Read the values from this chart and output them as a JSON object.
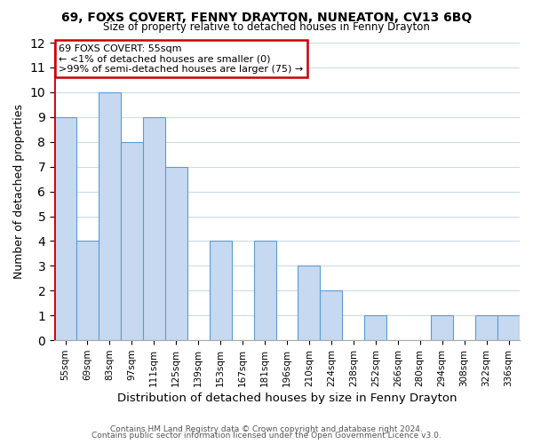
{
  "title": "69, FOXS COVERT, FENNY DRAYTON, NUNEATON, CV13 6BQ",
  "subtitle": "Size of property relative to detached houses in Fenny Drayton",
  "xlabel": "Distribution of detached houses by size in Fenny Drayton",
  "ylabel": "Number of detached properties",
  "categories": [
    "55sqm",
    "69sqm",
    "83sqm",
    "97sqm",
    "111sqm",
    "125sqm",
    "139sqm",
    "153sqm",
    "167sqm",
    "181sqm",
    "196sqm",
    "210sqm",
    "224sqm",
    "238sqm",
    "252sqm",
    "266sqm",
    "280sqm",
    "294sqm",
    "308sqm",
    "322sqm",
    "336sqm"
  ],
  "values": [
    9,
    4,
    10,
    8,
    9,
    7,
    0,
    4,
    0,
    4,
    0,
    3,
    2,
    0,
    1,
    0,
    0,
    1,
    0,
    1,
    1
  ],
  "bar_color": "#c6d9f0",
  "bar_edge_color": "#5b9bd5",
  "highlight_color": "#cc0000",
  "ylim": [
    0,
    12
  ],
  "yticks": [
    0,
    1,
    2,
    3,
    4,
    5,
    6,
    7,
    8,
    9,
    10,
    11,
    12
  ],
  "annotation_text": "69 FOXS COVERT: 55sqm\n← <1% of detached houses are smaller (0)\n>99% of semi-detached houses are larger (75) →",
  "footer_line1": "Contains HM Land Registry data © Crown copyright and database right 2024.",
  "footer_line2": "Contains public sector information licensed under the Open Government Licence v3.0.",
  "background_color": "#ffffff",
  "grid_color": "#c8d8e8"
}
